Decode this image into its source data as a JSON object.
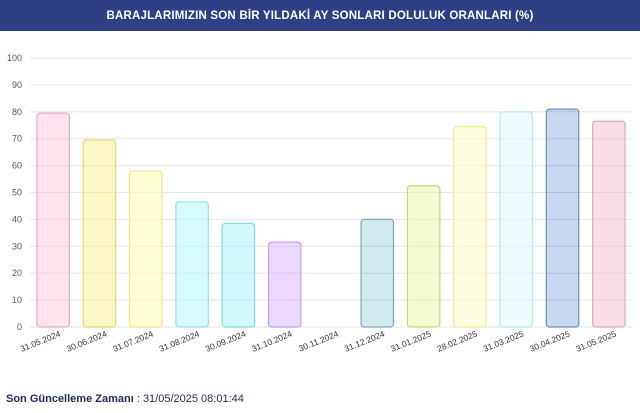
{
  "header": {
    "title": "BARAJLARIMIZIN SON BİR YILDAKİ AY SONLARI DOLULUK ORANLARI (%)"
  },
  "footer": {
    "label": "Son Güncelleme Zamanı",
    "separator": " : ",
    "value": "31/05/2025 08:01:44"
  },
  "chart_data": {
    "type": "bar",
    "title": "BARAJLARIMIZIN SON BİR YILDAKİ AY SONLARI DOLULUK ORANLARI (%)",
    "xlabel": "",
    "ylabel": "",
    "ylim": [
      0,
      100
    ],
    "yticks": [
      0,
      10,
      20,
      30,
      40,
      50,
      60,
      70,
      80,
      90,
      100
    ],
    "grid": true,
    "categories": [
      "31.05.2024",
      "30.06.2024",
      "31.07.2024",
      "31.08.2024",
      "30.09.2024",
      "31.10.2024",
      "30.11.2024",
      "31.12.2024",
      "31.01.2025",
      "28.02.2025",
      "31.03.2025",
      "30.04.2025",
      "31.05.2025"
    ],
    "values": [
      79.5,
      69.5,
      58,
      46.5,
      38.5,
      31.5,
      0,
      40,
      52.5,
      74.5,
      80,
      81,
      76.5
    ],
    "fills": [
      "#ffe3ee",
      "#fdf8c8",
      "#ffffd6",
      "#d8fafd",
      "#d2f7fb",
      "#ead8ff",
      "#e8e8e8",
      "#d0eaee",
      "#f2fbcf",
      "#fffde0",
      "#eefcff",
      "#c9d8ee",
      "#f6dde6"
    ],
    "strokes": [
      "#f0a9c2",
      "#e2d876",
      "#e8e89a",
      "#8fe1ea",
      "#7fdbe6",
      "#c79ef2",
      "#bdbdbd",
      "#7aa7b2",
      "#c6d97a",
      "#eeec9a",
      "#b3e6f2",
      "#6f8fb8",
      "#dba8bb"
    ]
  }
}
